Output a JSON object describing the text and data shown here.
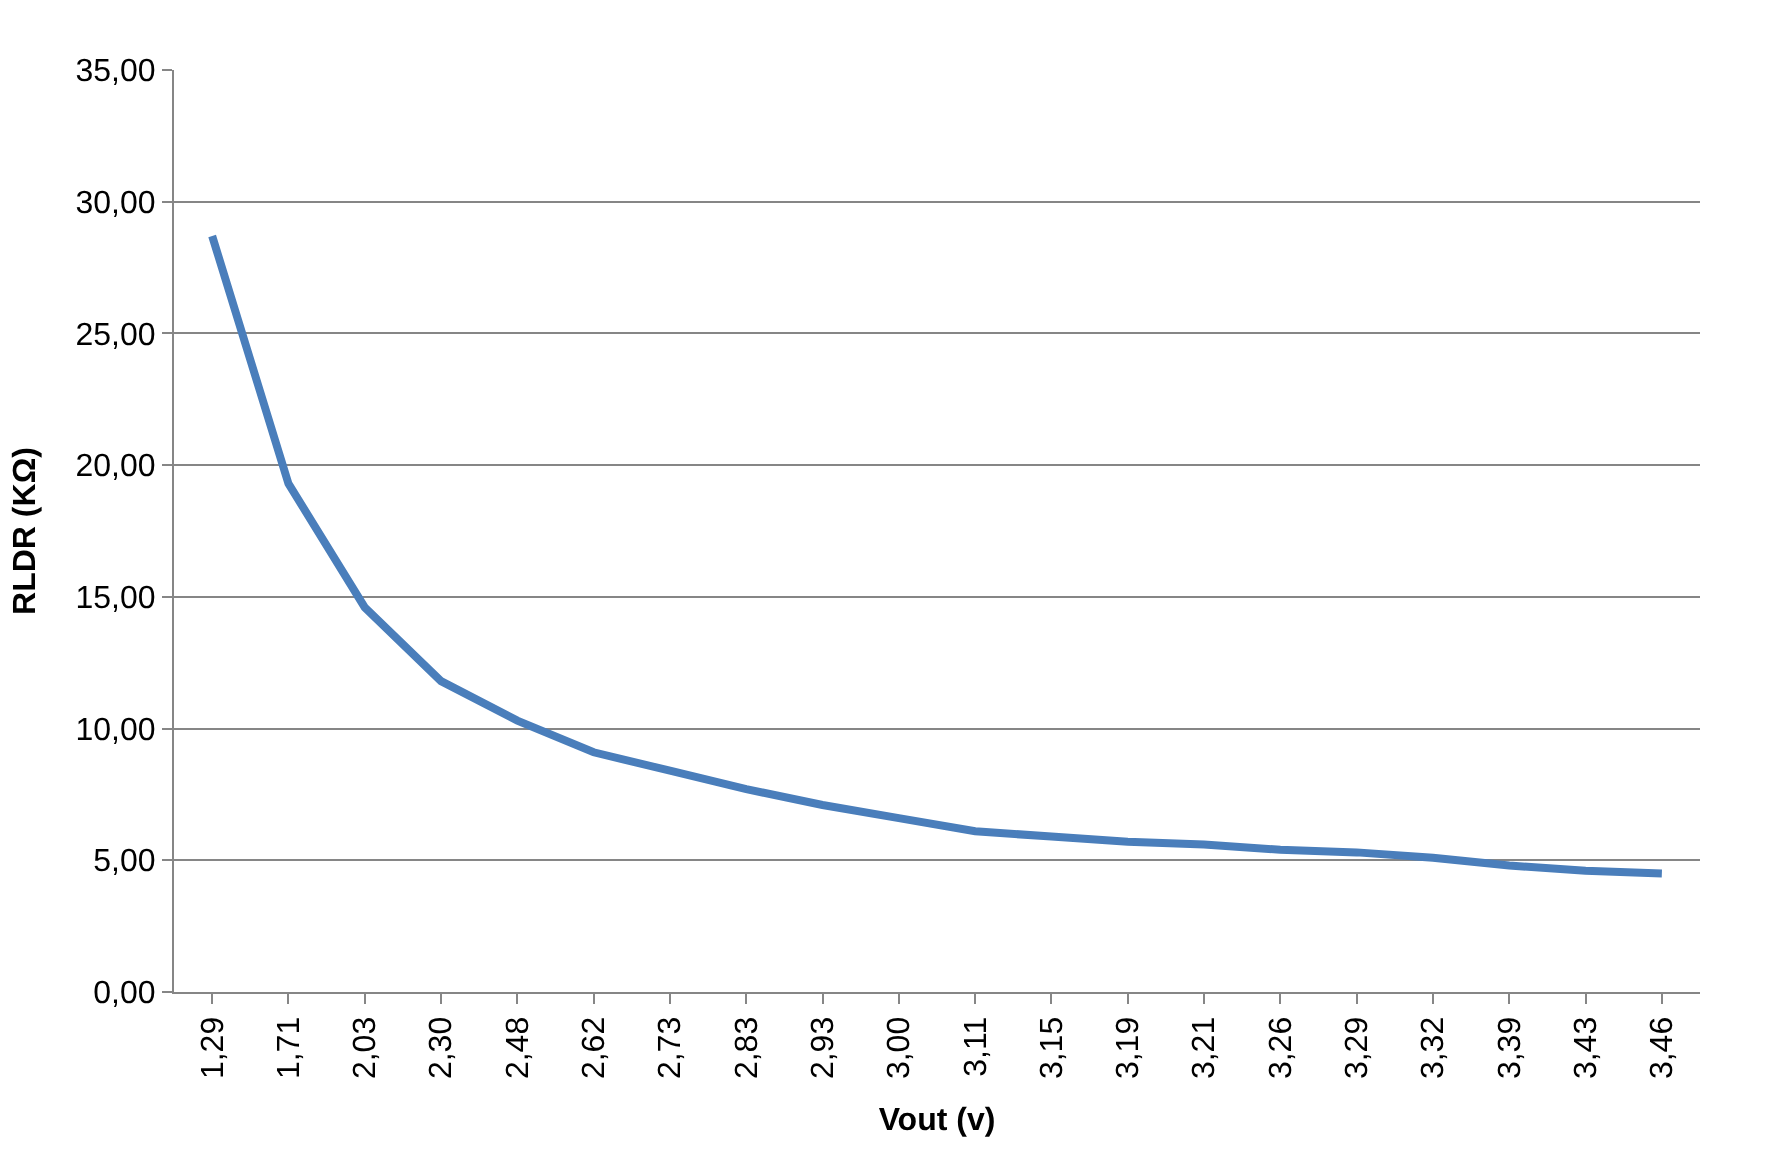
{
  "chart_data": {
    "type": "line",
    "xlabel": "Vout (v)",
    "ylabel": "RLDR (KΩ)",
    "categories": [
      "1,29",
      "1,71",
      "2,03",
      "2,30",
      "2,48",
      "2,62",
      "2,73",
      "2,83",
      "2,93",
      "3,00",
      "3,11",
      "3,15",
      "3,19",
      "3,21",
      "3,26",
      "3,29",
      "3,32",
      "3,39",
      "3,43",
      "3,46"
    ],
    "series": [
      {
        "color": "#4a7ebb",
        "values": [
          28.7,
          19.3,
          14.6,
          11.8,
          10.3,
          9.1,
          8.4,
          7.7,
          7.1,
          6.6,
          6.1,
          5.9,
          5.7,
          5.6,
          5.4,
          5.3,
          5.1,
          4.8,
          4.6,
          4.5
        ]
      }
    ],
    "ylim": [
      0,
      35
    ],
    "yticks": [
      {
        "value": 0,
        "label": "0,00"
      },
      {
        "value": 5,
        "label": "5,00"
      },
      {
        "value": 10,
        "label": "10,00"
      },
      {
        "value": 15,
        "label": "15,00"
      },
      {
        "value": 20,
        "label": "20,00"
      },
      {
        "value": 25,
        "label": "25,00"
      },
      {
        "value": 30,
        "label": "30,00"
      },
      {
        "value": 35,
        "label": "35,00"
      }
    ],
    "grid": "y",
    "legend": false,
    "marker": "none",
    "line_style": "solid"
  }
}
